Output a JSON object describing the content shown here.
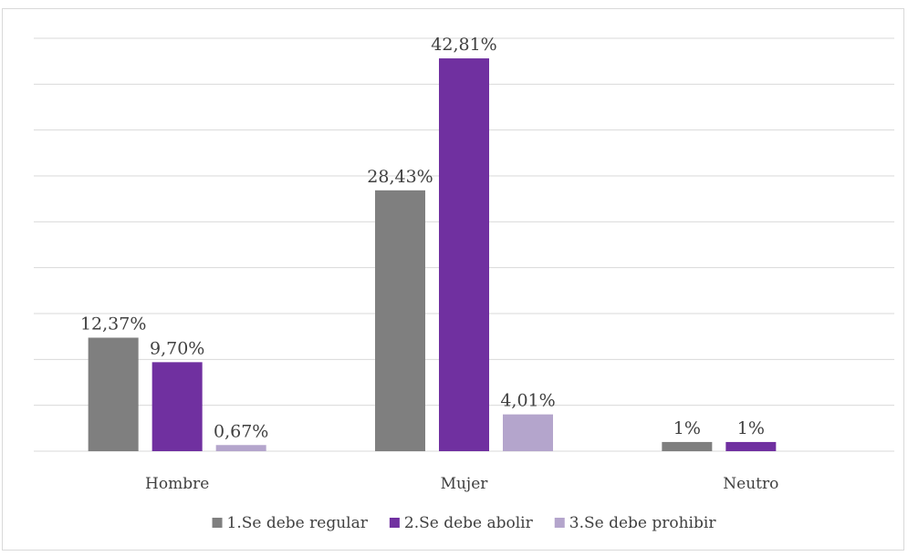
{
  "chart_data": {
    "type": "bar",
    "categories": [
      "Hombre",
      "Mujer",
      "Neutro"
    ],
    "series": [
      {
        "name": "1.Se debe regular",
        "color": "#7f7f7f",
        "values": [
          12.37,
          28.43,
          1
        ],
        "labels": [
          "12,37%",
          "28,43%",
          "1%"
        ]
      },
      {
        "name": "2.Se debe abolir",
        "color": "#7030a0",
        "values": [
          9.7,
          42.81,
          1
        ],
        "labels": [
          "9,70%",
          "42,81%",
          "1%"
        ]
      },
      {
        "name": "3.Se debe prohibir",
        "color": "#b4a5cc",
        "values": [
          0.67,
          4.01,
          null
        ],
        "labels": [
          "0,67%",
          "4,01%",
          ""
        ]
      }
    ],
    "ylim": [
      0,
      45
    ],
    "grid": true,
    "legend": "bottom",
    "title": "",
    "xlabel": "",
    "ylabel": ""
  }
}
